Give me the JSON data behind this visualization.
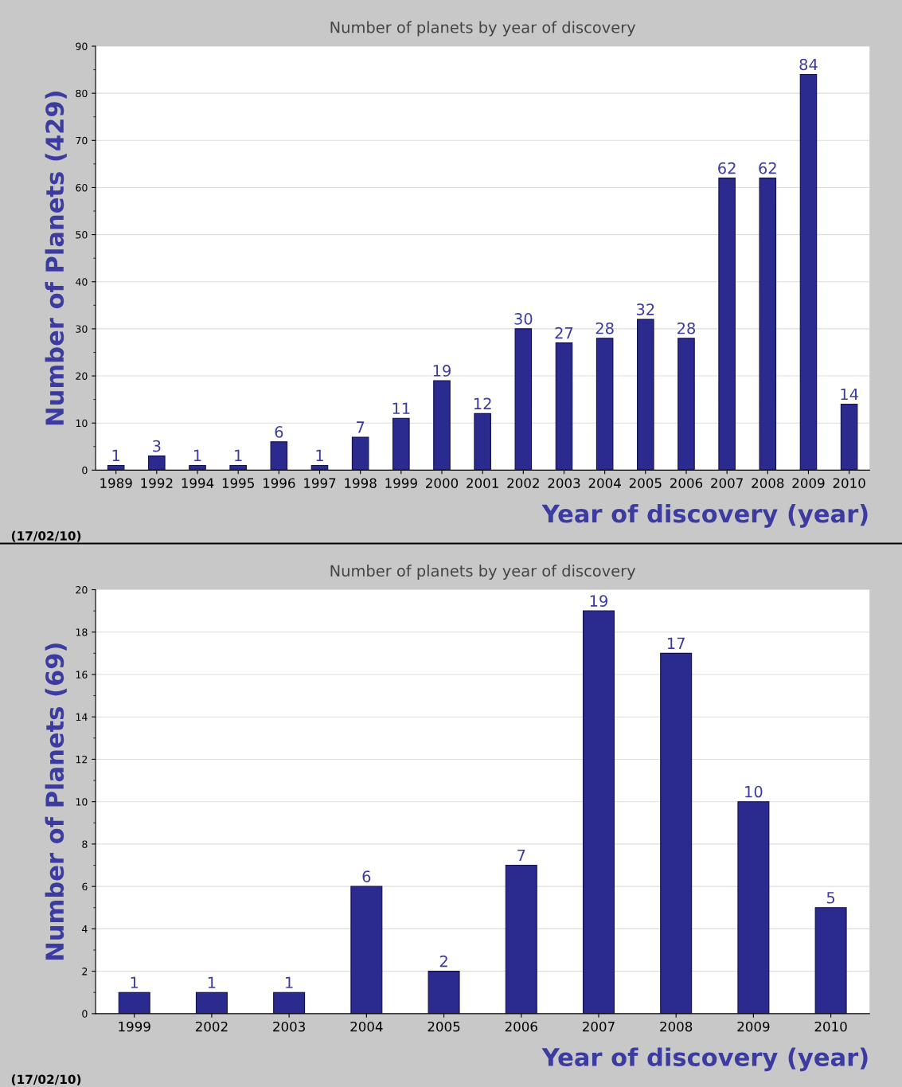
{
  "chart_data": [
    {
      "type": "bar",
      "title": "Number of planets by year of discovery",
      "xlabel": "Year of discovery (year)",
      "ylabel": "Number of Planets (429)",
      "categories": [
        "1989",
        "1992",
        "1994",
        "1995",
        "1996",
        "1997",
        "1998",
        "1999",
        "2000",
        "2001",
        "2002",
        "2003",
        "2004",
        "2005",
        "2006",
        "2007",
        "2008",
        "2009",
        "2010"
      ],
      "values": [
        1,
        3,
        1,
        1,
        6,
        1,
        7,
        11,
        19,
        12,
        30,
        27,
        28,
        32,
        28,
        62,
        62,
        84,
        14
      ],
      "color": "#2b2b8f",
      "ylim": [
        0,
        90
      ],
      "yticks": [
        0,
        10,
        20,
        30,
        40,
        50,
        60,
        70,
        80,
        90
      ],
      "grid": "y",
      "data_labels": true,
      "legend": false,
      "annotations": [
        "(17/02/10)"
      ]
    },
    {
      "type": "bar",
      "title": "Number of planets by year of discovery",
      "xlabel": "Year of discovery (year)",
      "ylabel": "Number of Planets (69)",
      "categories": [
        "1999",
        "2002",
        "2003",
        "2004",
        "2005",
        "2006",
        "2007",
        "2008",
        "2009",
        "2010"
      ],
      "values": [
        1,
        1,
        1,
        6,
        2,
        7,
        19,
        17,
        10,
        5
      ],
      "color": "#2b2b8f",
      "ylim": [
        0,
        20
      ],
      "yticks": [
        0,
        2,
        4,
        6,
        8,
        10,
        12,
        14,
        16,
        18,
        20
      ],
      "grid": "y",
      "data_labels": true,
      "legend": false,
      "annotations": [
        "(17/02/10)"
      ]
    }
  ]
}
